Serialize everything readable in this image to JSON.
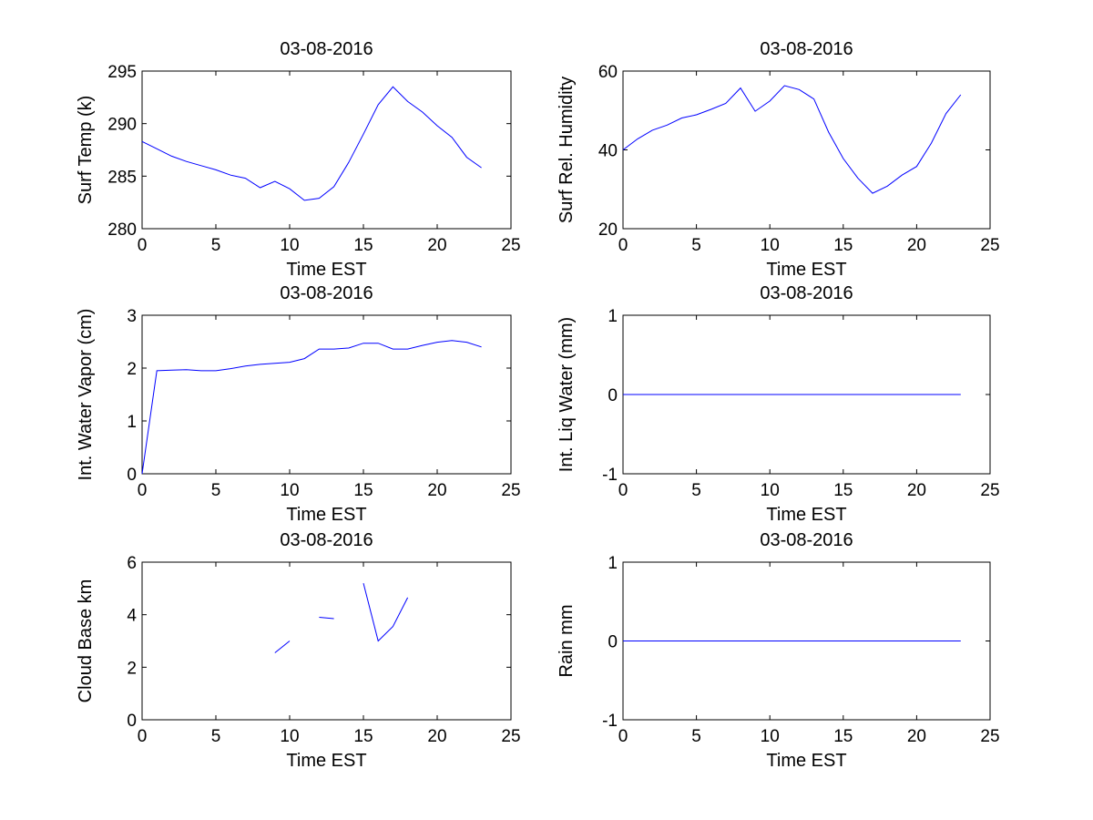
{
  "figure": {
    "background": "#ffffff",
    "line_color": "#0000ff"
  },
  "chart_data": [
    {
      "type": "line",
      "title": "03-08-2016",
      "xlabel": "Time EST",
      "ylabel": "Surf Temp (k)",
      "xlim": [
        0,
        25
      ],
      "ylim": [
        280,
        295
      ],
      "xticks": [
        0,
        5,
        10,
        15,
        20,
        25
      ],
      "yticks": [
        280,
        285,
        290,
        295
      ],
      "grid": false,
      "series": [
        {
          "x": [
            0,
            1,
            2,
            3,
            4,
            5,
            6,
            7,
            8,
            9,
            10,
            11,
            12,
            13,
            14,
            15,
            16,
            17,
            18,
            19,
            20,
            21,
            22,
            23
          ],
          "y": [
            288.3,
            287.6,
            286.9,
            286.4,
            286.0,
            285.6,
            285.1,
            284.8,
            283.9,
            284.5,
            283.8,
            282.7,
            282.9,
            284.0,
            286.3,
            289.0,
            291.8,
            293.5,
            292.1,
            291.1,
            289.8,
            288.7,
            286.8,
            285.8
          ]
        }
      ]
    },
    {
      "type": "line",
      "title": "03-08-2016",
      "xlabel": "Time EST",
      "ylabel": "Surf Rel. Humidity",
      "xlim": [
        0,
        25
      ],
      "ylim": [
        20,
        60
      ],
      "xticks": [
        0,
        5,
        10,
        15,
        20,
        25
      ],
      "yticks": [
        20,
        40,
        60
      ],
      "grid": false,
      "series": [
        {
          "x": [
            0,
            1,
            2,
            3,
            4,
            5,
            6,
            7,
            8,
            9,
            10,
            11,
            12,
            13,
            14,
            15,
            16,
            17,
            18,
            19,
            20,
            21,
            22,
            23
          ],
          "y": [
            40.0,
            42.8,
            45.0,
            46.3,
            48.1,
            48.9,
            50.3,
            51.8,
            55.7,
            49.8,
            52.4,
            56.3,
            55.3,
            52.9,
            44.5,
            37.8,
            32.8,
            29.0,
            30.8,
            33.6,
            35.8,
            41.7,
            49.2,
            54.0
          ]
        }
      ]
    },
    {
      "type": "line",
      "title": "03-08-2016",
      "xlabel": "Time EST",
      "ylabel": "Int. Water Vapor (cm)",
      "xlim": [
        0,
        25
      ],
      "ylim": [
        0,
        3
      ],
      "xticks": [
        0,
        5,
        10,
        15,
        20,
        25
      ],
      "yticks": [
        0,
        1,
        2,
        3
      ],
      "grid": false,
      "series": [
        {
          "x": [
            0,
            1,
            2,
            3,
            4,
            5,
            6,
            7,
            8,
            9,
            10,
            11,
            12,
            13,
            14,
            15,
            16,
            17,
            18,
            19,
            20,
            21,
            22,
            23
          ],
          "y": [
            0.0,
            1.95,
            1.96,
            1.97,
            1.95,
            1.95,
            1.99,
            2.04,
            2.07,
            2.09,
            2.11,
            2.18,
            2.36,
            2.36,
            2.38,
            2.47,
            2.47,
            2.36,
            2.36,
            2.43,
            2.49,
            2.52,
            2.49,
            2.4
          ]
        }
      ]
    },
    {
      "type": "line",
      "title": "03-08-2016",
      "xlabel": "Time EST",
      "ylabel": "Int. Liq Water (mm)",
      "xlim": [
        0,
        25
      ],
      "ylim": [
        -1,
        1
      ],
      "xticks": [
        0,
        5,
        10,
        15,
        20,
        25
      ],
      "yticks": [
        -1,
        0,
        1
      ],
      "grid": false,
      "series": [
        {
          "x": [
            0,
            23
          ],
          "y": [
            0,
            0
          ]
        }
      ]
    },
    {
      "type": "line",
      "title": "03-08-2016",
      "xlabel": "Time EST",
      "ylabel": "Cloud Base km",
      "xlim": [
        0,
        25
      ],
      "ylim": [
        0,
        6
      ],
      "xticks": [
        0,
        5,
        10,
        15,
        20,
        25
      ],
      "yticks": [
        0,
        2,
        4,
        6
      ],
      "grid": false,
      "series": [
        {
          "x": [
            9,
            10
          ],
          "y": [
            2.55,
            3.0
          ]
        },
        {
          "x": [
            12,
            13
          ],
          "y": [
            3.9,
            3.85
          ]
        },
        {
          "x": [
            15,
            16,
            17,
            18
          ],
          "y": [
            5.2,
            3.0,
            3.55,
            4.65
          ]
        }
      ]
    },
    {
      "type": "line",
      "title": "03-08-2016",
      "xlabel": "Time EST",
      "ylabel": "Rain mm",
      "xlim": [
        0,
        25
      ],
      "ylim": [
        -1,
        1
      ],
      "xticks": [
        0,
        5,
        10,
        15,
        20,
        25
      ],
      "yticks": [
        -1,
        0,
        1
      ],
      "grid": false,
      "series": [
        {
          "x": [
            0,
            23
          ],
          "y": [
            0,
            0
          ]
        }
      ]
    }
  ]
}
